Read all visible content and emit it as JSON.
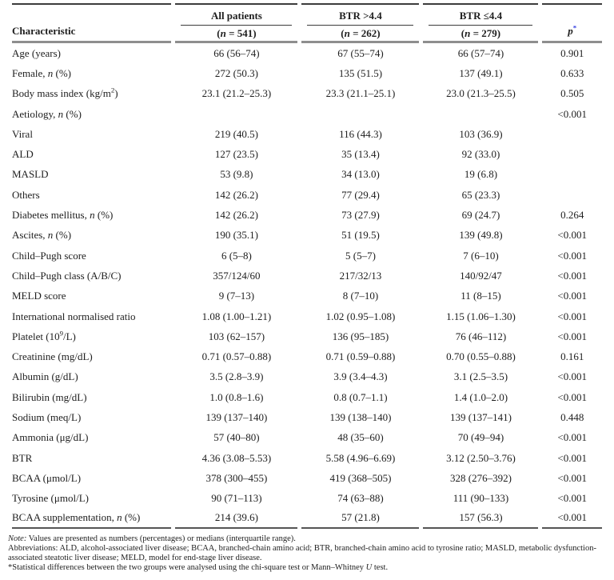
{
  "colors": {
    "p_marker_blue": "#2a35e0",
    "rule_dark": "#3c3c3c",
    "rule_thick_gray": "#8e8e8e"
  },
  "table": {
    "characteristic_label": "Characteristic",
    "group_headers": [
      "All patients",
      "BTR >4.4",
      "BTR ≤4.4"
    ],
    "subheaders": [
      [
        [
          "(",
          ""
        ],
        [
          "n",
          "i"
        ],
        [
          " = 541)",
          ""
        ]
      ],
      [
        [
          "(",
          ""
        ],
        [
          "n",
          "i"
        ],
        [
          " = 262)",
          ""
        ]
      ],
      [
        [
          "(",
          ""
        ],
        [
          "n",
          "i"
        ],
        [
          " = 279)",
          ""
        ]
      ]
    ],
    "p_header": [
      [
        "p",
        "i"
      ],
      [
        "*",
        "s",
        "#2a35e0"
      ]
    ],
    "rows": [
      {
        "label": [
          [
            "Age (years)",
            ""
          ]
        ],
        "all": "66 (56–74)",
        "gt": "67 (55–74)",
        "le": "66 (57–74)",
        "p": "0.901"
      },
      {
        "label": [
          [
            "Female, ",
            ""
          ],
          [
            "n",
            "i"
          ],
          [
            " (%)",
            ""
          ]
        ],
        "all": "272 (50.3)",
        "gt": "135 (51.5)",
        "le": "137 (49.1)",
        "p": "0.633"
      },
      {
        "label": [
          [
            "Body mass index (kg/m",
            ""
          ],
          [
            "2",
            "s"
          ],
          [
            ")",
            ""
          ]
        ],
        "all": "23.1 (21.2–25.3)",
        "gt": "23.3 (21.1–25.1)",
        "le": "23.0 (21.3–25.5)",
        "p": "0.505"
      },
      {
        "label": [
          [
            "Aetiology, ",
            ""
          ],
          [
            "n",
            "i"
          ],
          [
            " (%)",
            ""
          ]
        ],
        "all": "",
        "gt": "",
        "le": "",
        "p": "<0.001"
      },
      {
        "label": [
          [
            "Viral",
            ""
          ]
        ],
        "all": "219 (40.5)",
        "gt": "116 (44.3)",
        "le": "103 (36.9)",
        "p": ""
      },
      {
        "label": [
          [
            "ALD",
            ""
          ]
        ],
        "all": "127 (23.5)",
        "gt": "35 (13.4)",
        "le": "92 (33.0)",
        "p": ""
      },
      {
        "label": [
          [
            "MASLD",
            ""
          ]
        ],
        "all": "53 (9.8)",
        "gt": "34 (13.0)",
        "le": "19 (6.8)",
        "p": ""
      },
      {
        "label": [
          [
            "Others",
            ""
          ]
        ],
        "all": "142 (26.2)",
        "gt": "77 (29.4)",
        "le": "65 (23.3)",
        "p": ""
      },
      {
        "label": [
          [
            "Diabetes mellitus, ",
            ""
          ],
          [
            "n",
            "i"
          ],
          [
            " (%)",
            ""
          ]
        ],
        "all": "142 (26.2)",
        "gt": "73 (27.9)",
        "le": "69 (24.7)",
        "p": "0.264"
      },
      {
        "label": [
          [
            "Ascites, ",
            ""
          ],
          [
            "n",
            "i"
          ],
          [
            " (%)",
            ""
          ]
        ],
        "all": "190 (35.1)",
        "gt": "51 (19.5)",
        "le": "139 (49.8)",
        "p": "<0.001"
      },
      {
        "label": [
          [
            "Child–Pugh score",
            ""
          ]
        ],
        "all": "6 (5–8)",
        "gt": "5 (5–7)",
        "le": "7 (6–10)",
        "p": "<0.001"
      },
      {
        "label": [
          [
            "Child–Pugh class (A/B/C)",
            ""
          ]
        ],
        "all": "357/124/60",
        "gt": "217/32/13",
        "le": "140/92/47",
        "p": "<0.001"
      },
      {
        "label": [
          [
            "MELD score",
            ""
          ]
        ],
        "all": "9 (7–13)",
        "gt": "8 (7–10)",
        "le": "11 (8–15)",
        "p": "<0.001"
      },
      {
        "label": [
          [
            "International normalised ratio",
            ""
          ]
        ],
        "all": "1.08 (1.00–1.21)",
        "gt": "1.02 (0.95–1.08)",
        "le": "1.15 (1.06–1.30)",
        "p": "<0.001"
      },
      {
        "label": [
          [
            "Platelet (10",
            ""
          ],
          [
            "9",
            "s"
          ],
          [
            "/L)",
            ""
          ]
        ],
        "all": "103 (62–157)",
        "gt": "136 (95–185)",
        "le": "76 (46–112)",
        "p": "<0.001"
      },
      {
        "label": [
          [
            "Creatinine (mg/dL)",
            ""
          ]
        ],
        "all": "0.71 (0.57–0.88)",
        "gt": "0.71 (0.59–0.88)",
        "le": "0.70 (0.55–0.88)",
        "p": "0.161"
      },
      {
        "label": [
          [
            "Albumin (g/dL)",
            ""
          ]
        ],
        "all": "3.5 (2.8–3.9)",
        "gt": "3.9 (3.4–4.3)",
        "le": "3.1 (2.5–3.5)",
        "p": "<0.001"
      },
      {
        "label": [
          [
            "Bilirubin (mg/dL)",
            ""
          ]
        ],
        "all": "1.0 (0.8–1.6)",
        "gt": "0.8 (0.7–1.1)",
        "le": "1.4 (1.0–2.0)",
        "p": "<0.001"
      },
      {
        "label": [
          [
            "Sodium (meq/L)",
            ""
          ]
        ],
        "all": "139 (137–140)",
        "gt": "139 (138–140)",
        "le": "139 (137–141)",
        "p": "0.448"
      },
      {
        "label": [
          [
            "Ammonia (μg/dL)",
            ""
          ]
        ],
        "all": "57 (40–80)",
        "gt": "48 (35–60)",
        "le": "70 (49–94)",
        "p": "<0.001"
      },
      {
        "label": [
          [
            "BTR",
            ""
          ]
        ],
        "all": "4.36 (3.08–5.53)",
        "gt": "5.58 (4.96–6.69)",
        "le": "3.12 (2.50–3.76)",
        "p": "<0.001"
      },
      {
        "label": [
          [
            "BCAA (μmol/L)",
            ""
          ]
        ],
        "all": "378 (300–455)",
        "gt": "419 (368–505)",
        "le": "328 (276–392)",
        "p": "<0.001"
      },
      {
        "label": [
          [
            "Tyrosine (μmol/L)",
            ""
          ]
        ],
        "all": "90 (71–113)",
        "gt": "74 (63–88)",
        "le": "111 (90–133)",
        "p": "<0.001"
      },
      {
        "label": [
          [
            "BCAA supplementation, ",
            ""
          ],
          [
            "n",
            "i"
          ],
          [
            " (%)",
            ""
          ]
        ],
        "all": "214 (39.6)",
        "gt": "57 (21.8)",
        "le": "157 (56.3)",
        "p": "<0.001"
      }
    ]
  },
  "footnotes": {
    "note": [
      [
        "Note:",
        "i"
      ],
      [
        " Values are presented as numbers (percentages) or medians (interquartile range).",
        ""
      ]
    ],
    "abbreviations": [
      [
        "Abbreviations: ALD, alcohol-associated liver disease; BCAA, branched-chain amino acid; BTR, branched-chain amino acid to tyrosine ratio; MASLD, metabolic dysfunction-associated steatotic liver disease; MELD, model for end-stage liver disease.",
        ""
      ]
    ],
    "statistics": [
      [
        "*",
        ""
      ],
      [
        "Statistical differences between the two groups were analysed using the chi-square test or Mann–Whitney ",
        ""
      ],
      [
        "U",
        "i"
      ],
      [
        " test.",
        ""
      ]
    ]
  }
}
